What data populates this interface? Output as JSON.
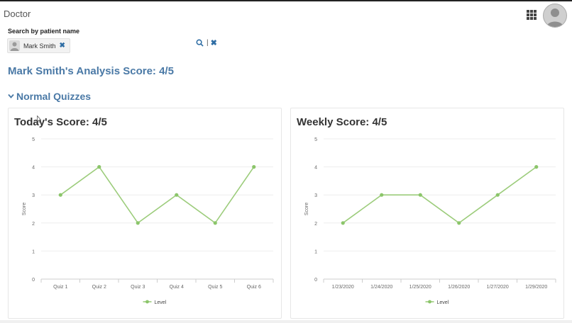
{
  "header": {
    "app_title": "Doctor",
    "apps_icon": "grid-icon",
    "avatar_icon": "user-avatar-icon"
  },
  "search": {
    "label": "Search by patient name",
    "chip": {
      "name": "Mark Smith",
      "remove_icon": "close-icon"
    },
    "search_icon": "search-icon",
    "separator": "|",
    "clear_icon": "close-icon"
  },
  "analysis": {
    "title": "Mark Smith's Analysis Score: 4/5",
    "section_label": "Normal Quizzes",
    "section_icon": "chevron-down-icon"
  },
  "colors": {
    "accent": "#4a79a6",
    "line": "#9ccc7b",
    "point": "#8bc56a"
  },
  "chart_data": [
    {
      "type": "line",
      "title": "Today's  Score: 4/5",
      "ylabel": "Score",
      "xlabel": "",
      "ylim": [
        0,
        5
      ],
      "yticks": [
        "0",
        "1",
        "2",
        "3",
        "4",
        "5"
      ],
      "grid": true,
      "legend": "bottom-center",
      "categories": [
        "Quiz 1",
        "Quiz 2",
        "Quiz 3",
        "Quiz 4",
        "Quiz 5",
        "Quiz 6"
      ],
      "series": [
        {
          "name": "Level",
          "values": [
            3,
            4,
            2,
            3,
            2,
            4
          ]
        }
      ]
    },
    {
      "type": "line",
      "title": "Weekly  Score: 4/5",
      "ylabel": "Score",
      "xlabel": "",
      "ylim": [
        0,
        5
      ],
      "yticks": [
        "0",
        "1",
        "2",
        "3",
        "4",
        "5"
      ],
      "grid": true,
      "legend": "bottom-center",
      "categories": [
        "1/23/2020",
        "1/24/2020",
        "1/25/2020",
        "1/26/2020",
        "1/27/2020",
        "1/29/2020"
      ],
      "series": [
        {
          "name": "Level",
          "values": [
            2,
            3,
            3,
            2,
            3,
            4
          ]
        }
      ]
    }
  ]
}
